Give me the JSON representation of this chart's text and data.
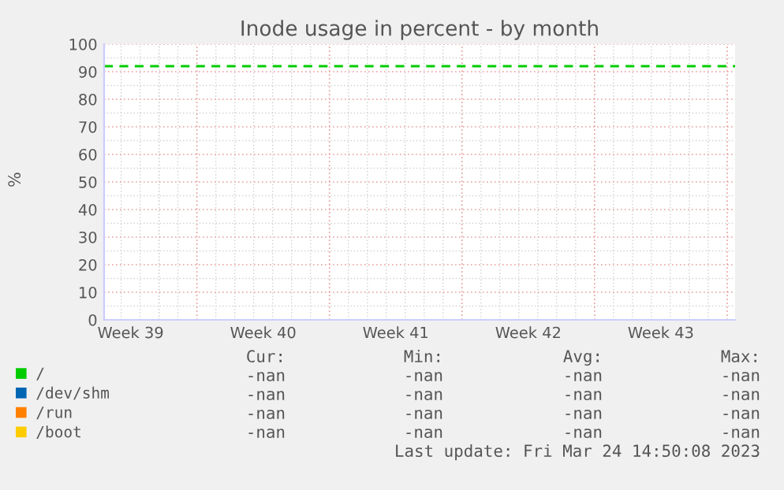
{
  "chart_data": {
    "type": "line",
    "title": "Inode usage in percent - by month",
    "ylabel": "%",
    "categories": [
      "Week 39",
      "Week 40",
      "Week 41",
      "Week 42",
      "Week 43"
    ],
    "series": [
      {
        "name": "/",
        "color": "#00cc00",
        "values": [
          null,
          null,
          null,
          null,
          null
        ]
      },
      {
        "name": "/dev/shm",
        "color": "#0066b3",
        "values": [
          null,
          null,
          null,
          null,
          null
        ]
      },
      {
        "name": "/run",
        "color": "#ff8000",
        "values": [
          null,
          null,
          null,
          null,
          null
        ]
      },
      {
        "name": "/boot",
        "color": "#ffcc00",
        "values": [
          null,
          null,
          null,
          null,
          null
        ]
      }
    ],
    "ylim": [
      0,
      100
    ],
    "yticks": [
      0,
      10,
      20,
      30,
      40,
      50,
      60,
      70,
      80,
      90,
      100
    ],
    "ref_lines": [
      {
        "axis": "y",
        "value": 92,
        "color": "#00cc00",
        "line_style": "dashed"
      }
    ],
    "grid": true,
    "legend": "bottom",
    "annotations": [
      "Cur:",
      "Min:",
      "Avg:",
      "Max:",
      "-nan",
      "-nan",
      "-nan",
      "-nan",
      "-nan",
      "-nan",
      "-nan",
      "-nan",
      "-nan",
      "-nan",
      "-nan",
      "-nan",
      "-nan",
      "-nan",
      "-nan",
      "-nan",
      "Last update: Fri Mar 24 14:50:08 2023"
    ]
  }
}
